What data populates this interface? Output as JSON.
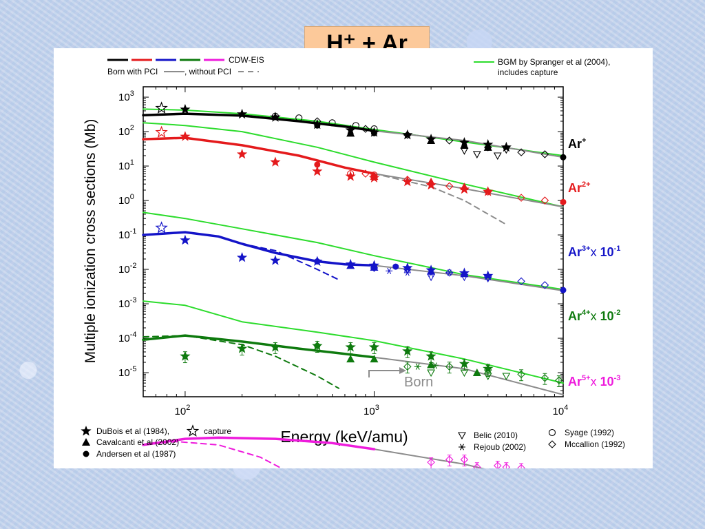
{
  "title": "H⁺ + Ar",
  "chart_data": {
    "type": "line",
    "xlabel": "Energy (keV/amu)",
    "ylabel": "Multiple ionization cross sections (Mb)",
    "x_scale": "log",
    "y_scale": "log",
    "xlim": [
      60,
      10000
    ],
    "ylim": [
      2e-06,
      2000
    ],
    "xticks": [
      "10^2",
      "10^3",
      "10^4"
    ],
    "yticks": [
      "10^3",
      "10^2",
      "10^1",
      "10^0",
      "10^-1",
      "10^-2",
      "10^-3",
      "10^-4",
      "10^-5"
    ],
    "colors": {
      "ar1": "#000000",
      "ar2": "#e41a1c",
      "ar3": "#1414c8",
      "ar4": "#0e7a0e",
      "ar5": "#ee1bdc",
      "bgm": "#2cdc2c",
      "born": "#8c8c8c"
    },
    "legend_top": {
      "cdw_label": "CDW-EIS",
      "born_pci_label": "Born with PCI",
      "without_pci_label": ", without PCI",
      "bgm_label": "BGM by Spranger et al (2004),",
      "bgm_label2": "includes capture"
    },
    "legend_bottom": {
      "dubois": "DuBois et al (1984),",
      "capture": "capture",
      "cavalcanti": "Cavalcanti et al (2002)",
      "andersen": "Andersen et al  (1987)",
      "belic": "Belic (2010)",
      "rejoub": "Rejoub (2002)",
      "syage": "Syage (1992)",
      "mccallion": "Mccallion (1992)"
    },
    "series_labels": [
      {
        "key": "ar1",
        "base": "Ar",
        "sup": "+",
        "factor": "",
        "factor_sup": ""
      },
      {
        "key": "ar2",
        "base": "Ar",
        "sup": "2+",
        "factor": "",
        "factor_sup": ""
      },
      {
        "key": "ar3",
        "base": "Ar",
        "sup": "3+",
        "factor": "x 10",
        "factor_sup": "-1"
      },
      {
        "key": "ar4",
        "base": "Ar",
        "sup": "4+",
        "factor": "x 10",
        "factor_sup": "-2"
      },
      {
        "key": "ar5",
        "base": "Ar",
        "sup": "5+",
        "factor": "x 10",
        "factor_sup": "-3"
      }
    ],
    "born_annotation": "Born",
    "curves": {
      "cdw": {
        "ar1": [
          [
            60,
            300
          ],
          [
            100,
            330
          ],
          [
            200,
            290
          ],
          [
            400,
            200
          ],
          [
            700,
            140
          ],
          [
            1000,
            105
          ]
        ],
        "ar2": [
          [
            60,
            60
          ],
          [
            100,
            66
          ],
          [
            200,
            40
          ],
          [
            400,
            20
          ],
          [
            700,
            9
          ],
          [
            1000,
            6
          ]
        ],
        "ar3": [
          [
            60,
            1.0
          ],
          [
            100,
            1.2
          ],
          [
            150,
            0.9
          ],
          [
            200,
            0.55
          ],
          [
            300,
            0.3
          ],
          [
            500,
            0.17
          ],
          [
            700,
            0.14
          ],
          [
            1000,
            0.13
          ]
        ],
        "ar4": [
          [
            60,
            0.009
          ],
          [
            100,
            0.012
          ],
          [
            200,
            0.008
          ],
          [
            400,
            0.005
          ],
          [
            700,
            0.0035
          ],
          [
            1000,
            0.0028
          ]
        ],
        "ar5": [
          [
            60,
            8e-05
          ],
          [
            100,
            0.00012
          ],
          [
            150,
            0.00013
          ],
          [
            300,
            0.00012
          ],
          [
            600,
            9e-05
          ],
          [
            1000,
            6e-05
          ]
        ]
      },
      "born_pci": {
        "ar1": [
          [
            1000,
            105
          ],
          [
            3000,
            55
          ],
          [
            10000,
            18
          ]
        ],
        "ar2": [
          [
            1000,
            6
          ],
          [
            3000,
            2.2
          ],
          [
            10000,
            0.65
          ]
        ],
        "ar3": [
          [
            1000,
            0.13
          ],
          [
            3000,
            0.065
          ],
          [
            10000,
            0.024
          ]
        ],
        "ar4": [
          [
            1000,
            0.0028
          ],
          [
            3000,
            0.0013
          ],
          [
            10000,
            0.00023
          ]
        ],
        "ar5": [
          [
            1000,
            6e-05
          ],
          [
            3000,
            2.2e-05
          ],
          [
            10000,
            4.5e-06
          ]
        ]
      },
      "born_nopci": {
        "ar2": [
          [
            1000,
            6
          ],
          [
            2000,
            2.5
          ],
          [
            3000,
            1.0
          ],
          [
            5000,
            0.2
          ]
        ]
      },
      "without_pci_dashed": {
        "ar3": [
          [
            200,
            0.55
          ],
          [
            300,
            0.35
          ],
          [
            500,
            0.1
          ],
          [
            650,
            0.05
          ]
        ],
        "ar4": [
          [
            60,
            0.011
          ],
          [
            100,
            0.012
          ],
          [
            200,
            0.0065
          ],
          [
            300,
            0.003
          ],
          [
            500,
            0.0008
          ],
          [
            650,
            0.00035
          ]
        ],
        "ar5": [
          [
            60,
            8e-05
          ],
          [
            90,
            0.0001
          ],
          [
            150,
            8e-05
          ],
          [
            250,
            3.5e-05
          ],
          [
            400,
            9e-06
          ],
          [
            500,
            3e-06
          ]
        ]
      },
      "bgm": {
        "ar1": [
          [
            60,
            450
          ],
          [
            100,
            420
          ],
          [
            200,
            330
          ],
          [
            500,
            200
          ],
          [
            1000,
            115
          ],
          [
            3000,
            50
          ],
          [
            10000,
            20
          ]
        ],
        "ar2": [
          [
            60,
            180
          ],
          [
            100,
            150
          ],
          [
            200,
            100
          ],
          [
            500,
            35
          ],
          [
            1000,
            13
          ],
          [
            3000,
            3
          ],
          [
            10000,
            0.65
          ]
        ],
        "ar3": [
          [
            60,
            4.5
          ],
          [
            100,
            3.0
          ],
          [
            200,
            1.5
          ],
          [
            500,
            0.6
          ],
          [
            1000,
            0.25
          ],
          [
            3000,
            0.07
          ],
          [
            10000,
            0.026
          ]
        ],
        "ar4": [
          [
            60,
            0.12
          ],
          [
            100,
            0.09
          ],
          [
            200,
            0.03
          ],
          [
            500,
            0.015
          ],
          [
            1000,
            0.0085
          ],
          [
            3000,
            0.0025
          ],
          [
            10000,
            0.0005
          ]
        ]
      }
    },
    "points": {
      "dubois_star": [
        [
          "ar1",
          100,
          440
        ],
        [
          "ar1",
          200,
          320
        ],
        [
          "ar1",
          300,
          260
        ],
        [
          "ar1",
          500,
          160
        ],
        [
          "ar1",
          750,
          110
        ],
        [
          "ar1",
          1000,
          95
        ],
        [
          "ar1",
          1500,
          80
        ],
        [
          "ar1",
          2000,
          60
        ],
        [
          "ar1",
          3000,
          48
        ],
        [
          "ar1",
          4000,
          42
        ],
        [
          "ar1",
          5000,
          35
        ],
        [
          "ar2",
          100,
          72
        ],
        [
          "ar2",
          200,
          22
        ],
        [
          "ar2",
          300,
          13
        ],
        [
          "ar2",
          500,
          7
        ],
        [
          "ar2",
          750,
          5
        ],
        [
          "ar2",
          1000,
          4.5
        ],
        [
          "ar2",
          1500,
          3.5
        ],
        [
          "ar2",
          2000,
          2.8
        ],
        [
          "ar2",
          3000,
          2.1
        ],
        [
          "ar2",
          4000,
          1.8
        ],
        [
          "ar3",
          100,
          0.7
        ],
        [
          "ar3",
          200,
          0.22
        ],
        [
          "ar3",
          300,
          0.18
        ],
        [
          "ar3",
          500,
          0.17
        ],
        [
          "ar3",
          750,
          0.14
        ],
        [
          "ar3",
          1000,
          0.13
        ],
        [
          "ar3",
          1500,
          0.11
        ],
        [
          "ar3",
          2000,
          0.095
        ],
        [
          "ar3",
          3000,
          0.078
        ],
        [
          "ar3",
          4000,
          0.065
        ],
        [
          "ar4",
          100,
          0.003
        ],
        [
          "ar4",
          200,
          0.005
        ],
        [
          "ar4",
          300,
          0.0055
        ],
        [
          "ar4",
          500,
          0.006
        ],
        [
          "ar4",
          750,
          0.0055
        ],
        [
          "ar4",
          1000,
          0.0055
        ],
        [
          "ar4",
          1500,
          0.0042
        ],
        [
          "ar4",
          2000,
          0.003
        ],
        [
          "ar4",
          3000,
          0.0018
        ],
        [
          "ar4",
          4000,
          0.0013
        ]
      ],
      "capture_star": [
        [
          "ar1",
          75,
          480
        ],
        [
          "ar2",
          75,
          95
        ],
        [
          "ar3",
          75,
          1.6
        ]
      ],
      "cavalcanti": [
        [
          "ar1",
          750,
          90
        ],
        [
          "ar1",
          2000,
          55
        ],
        [
          "ar1",
          3000,
          40
        ],
        [
          "ar1",
          4000,
          35
        ],
        [
          "ar2",
          1000,
          5
        ],
        [
          "ar2",
          2000,
          3.5
        ],
        [
          "ar2",
          3000,
          2.5
        ],
        [
          "ar3",
          750,
          0.13
        ],
        [
          "ar3",
          1000,
          0.115
        ],
        [
          "ar3",
          2000,
          0.09
        ],
        [
          "ar3",
          3000,
          0.075
        ],
        [
          "ar4",
          750,
          0.0025
        ],
        [
          "ar4",
          1000,
          0.0025
        ],
        [
          "ar4",
          2000,
          0.0017
        ],
        [
          "ar4",
          3500,
          0.001
        ]
      ],
      "andersen": [
        [
          "ar1",
          500,
          150
        ],
        [
          "ar1",
          1000,
          90
        ],
        [
          "ar2",
          500,
          11
        ],
        [
          "ar2",
          1000,
          5
        ],
        [
          "ar3",
          500,
          0.17
        ],
        [
          "ar3",
          1000,
          0.12
        ],
        [
          "ar3",
          1300,
          0.12
        ],
        [
          "ar4",
          500,
          0.006
        ],
        [
          "ar1",
          10000,
          18
        ],
        [
          "ar2",
          10000,
          0.9
        ],
        [
          "ar3",
          10000,
          0.025
        ]
      ],
      "belic": [
        [
          "ar1",
          3500,
          22
        ],
        [
          "ar1",
          4500,
          20
        ],
        [
          "ar1",
          5000,
          30
        ],
        [
          "ar1",
          3000,
          28
        ],
        [
          "ar3",
          2000,
          0.06
        ],
        [
          "ar3",
          3000,
          0.06
        ],
        [
          "ar3",
          4000,
          0.055
        ],
        [
          "ar4",
          2000,
          0.001
        ],
        [
          "ar4",
          3000,
          0.001
        ],
        [
          "ar4",
          4000,
          0.0008
        ],
        [
          "ar4",
          5000,
          0.0008
        ],
        [
          "ar5",
          3500,
          7e-06
        ],
        [
          "ar5",
          4000,
          7.5e-06
        ]
      ],
      "rejoub": [
        [
          "ar3",
          1200,
          0.09
        ],
        [
          "ar3",
          1500,
          0.08
        ],
        [
          "ar3",
          2000,
          0.075
        ],
        [
          "ar3",
          2500,
          0.08
        ],
        [
          "ar4",
          1700,
          0.0015
        ],
        [
          "ar4",
          2100,
          0.0016
        ]
      ],
      "syage": [
        [
          "ar1",
          300,
          280
        ],
        [
          "ar1",
          400,
          250
        ],
        [
          "ar1",
          600,
          180
        ],
        [
          "ar1",
          800,
          150
        ],
        [
          "ar1",
          1000,
          120
        ],
        [
          "ar2",
          750,
          6
        ],
        [
          "ar2",
          1000,
          5.5
        ]
      ],
      "mccallion": [
        [
          "ar1",
          500,
          200
        ],
        [
          "ar1",
          900,
          120
        ],
        [
          "ar1",
          1500,
          80
        ],
        [
          "ar1",
          2500,
          55
        ],
        [
          "ar1",
          4000,
          35
        ],
        [
          "ar1",
          6000,
          25
        ],
        [
          "ar1",
          8000,
          22
        ],
        [
          "ar2",
          900,
          6
        ],
        [
          "ar2",
          1500,
          4
        ],
        [
          "ar2",
          2500,
          2.6
        ],
        [
          "ar2",
          4000,
          1.8
        ],
        [
          "ar2",
          6000,
          1.2
        ],
        [
          "ar2",
          8000,
          1.0
        ],
        [
          "ar3",
          1000,
          0.11
        ],
        [
          "ar3",
          1500,
          0.1
        ],
        [
          "ar3",
          2500,
          0.08
        ],
        [
          "ar3",
          4000,
          0.06
        ],
        [
          "ar3",
          6000,
          0.045
        ],
        [
          "ar3",
          8000,
          0.035
        ],
        [
          "ar4",
          1500,
          0.0015
        ],
        [
          "ar4",
          2500,
          0.0015
        ],
        [
          "ar4",
          4000,
          0.0012
        ],
        [
          "ar4",
          6000,
          0.0009
        ],
        [
          "ar4",
          8000,
          0.0007
        ],
        [
          "ar4",
          9500,
          0.0006
        ],
        [
          "ar5",
          2000,
          2.5e-05
        ],
        [
          "ar5",
          2500,
          3e-05
        ],
        [
          "ar5",
          3000,
          3e-05
        ],
        [
          "ar5",
          3500,
          1.8e-05
        ],
        [
          "ar5",
          4500,
          2e-05
        ],
        [
          "ar5",
          5000,
          1.8e-05
        ],
        [
          "ar5",
          6000,
          1.7e-05
        ],
        [
          "ar5",
          7000,
          1.2e-05
        ],
        [
          "ar5",
          8000,
          1.2e-05
        ],
        [
          "ar5",
          9500,
          1e-05
        ]
      ]
    },
    "error_bar_fraction": 0.35
  }
}
